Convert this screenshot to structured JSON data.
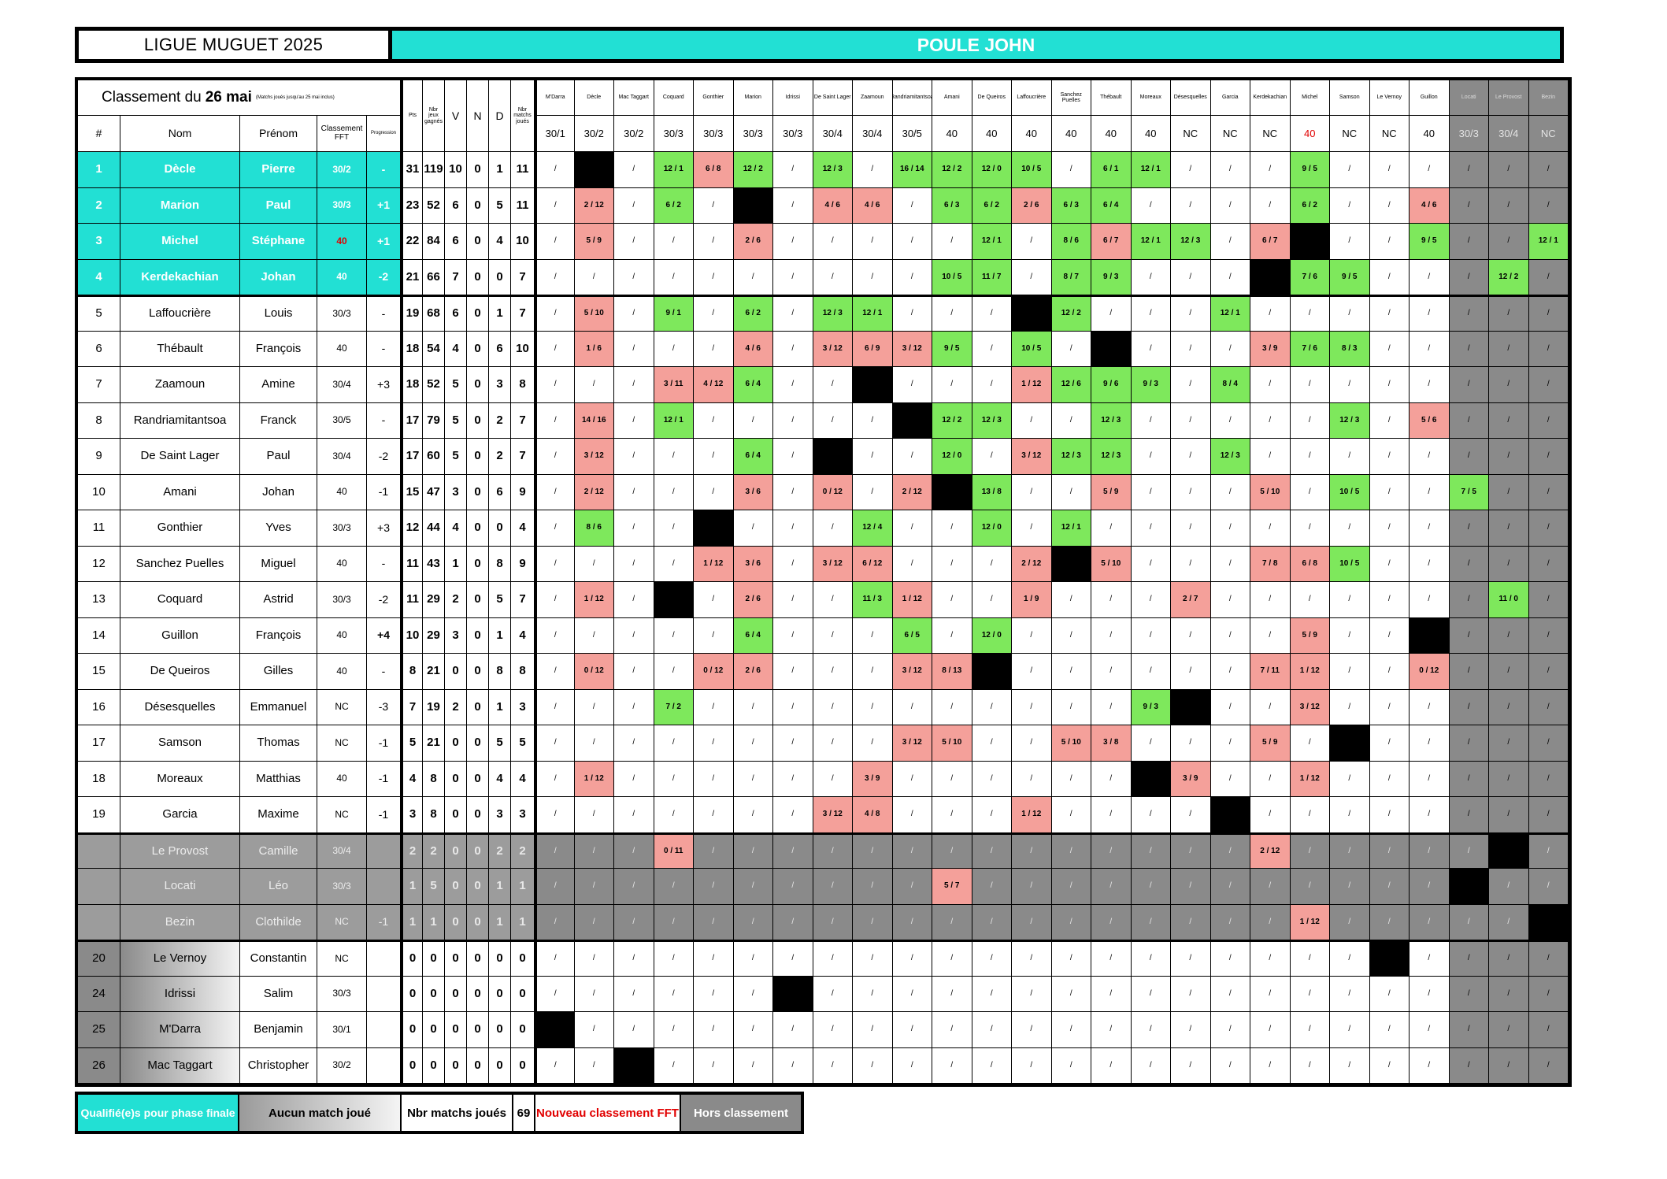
{
  "header": {
    "league": "LIGUE MUGUET 2025",
    "pool": "POULE JOHN"
  },
  "caption": {
    "prefix": "Classement du",
    "date": "26 mai",
    "note": "(Matchs joués jusqu'au 25 mai inclus)"
  },
  "columns": {
    "rank": "#",
    "nom": "Nom",
    "prenom": "Prénom",
    "classement": "Classement FFT",
    "progression": "Progression",
    "pts": "Pts",
    "jeux": "Nbr jeux gagnés",
    "v": "V",
    "n": "N",
    "d": "D",
    "matchs": "Nbr matchs joués"
  },
  "opponents": [
    {
      "name": "M'Darra",
      "rank": "30/1"
    },
    {
      "name": "Dècle",
      "rank": "30/2"
    },
    {
      "name": "Mac Taggart",
      "rank": "30/2"
    },
    {
      "name": "Coquard",
      "rank": "30/3"
    },
    {
      "name": "Gonthier",
      "rank": "30/3"
    },
    {
      "name": "Marion",
      "rank": "30/3"
    },
    {
      "name": "Idrissi",
      "rank": "30/3"
    },
    {
      "name": "De Saint Lager",
      "rank": "30/4"
    },
    {
      "name": "Zaamoun",
      "rank": "30/4"
    },
    {
      "name": "Randriamitantsoa",
      "rank": "30/5"
    },
    {
      "name": "Amani",
      "rank": "40"
    },
    {
      "name": "De Queiros",
      "rank": "40"
    },
    {
      "name": "Laffoucrière",
      "rank": "40"
    },
    {
      "name": "Sanchez Puelles",
      "rank": "40"
    },
    {
      "name": "Thébault",
      "rank": "40"
    },
    {
      "name": "Moreaux",
      "rank": "40"
    },
    {
      "name": "Désesquelles",
      "rank": "NC"
    },
    {
      "name": "Garcia",
      "rank": "NC"
    },
    {
      "name": "Kerdekachian",
      "rank": "NC"
    },
    {
      "name": "Michel",
      "rank": "40"
    },
    {
      "name": "Samson",
      "rank": "NC"
    },
    {
      "name": "Le Vernoy",
      "rank": "NC"
    },
    {
      "name": "Guillon",
      "rank": "40"
    },
    {
      "name": "Locati",
      "rank": "30/3"
    },
    {
      "name": "Le Provost",
      "rank": "30/4"
    },
    {
      "name": "Bezin",
      "rank": "NC"
    }
  ],
  "rows": [
    {
      "rank": "1",
      "nom": "Dècle",
      "prenom": "Pierre",
      "classement": "30/2",
      "progression": "-",
      "pts": "31",
      "jeux": "119",
      "v": "10",
      "n": "0",
      "d": "1",
      "matchs": "11",
      "results": [
        "/",
        "",
        "/",
        "12 / 1",
        "6 / 8",
        "12 / 2",
        "/",
        "12 / 3",
        "/",
        "16 / 14",
        "12 / 2",
        "12 / 0",
        "10 / 5",
        "/",
        "6 / 1",
        "12 / 1",
        "/",
        "/",
        "/",
        "9 / 5",
        "/",
        "/",
        "/",
        "/",
        "/",
        "/"
      ]
    },
    {
      "rank": "2",
      "nom": "Marion",
      "prenom": "Paul",
      "classement": "30/3",
      "progression": "+1",
      "pts": "23",
      "jeux": "52",
      "v": "6",
      "n": "0",
      "d": "5",
      "matchs": "11",
      "results": [
        "/",
        "2 / 12",
        "/",
        "6 / 2",
        "/",
        "",
        "/",
        "4 / 6",
        "4 / 6",
        "/",
        "6 / 3",
        "6 / 2",
        "2 / 6",
        "6 / 3",
        "6 / 4",
        "/",
        "/",
        "/",
        "/",
        "6 / 2",
        "/",
        "/",
        "4 / 6",
        "/",
        "/",
        "/"
      ]
    },
    {
      "rank": "3",
      "nom": "Michel",
      "prenom": "Stéphane",
      "classement": "40",
      "progression": "+1",
      "pts": "22",
      "jeux": "84",
      "v": "6",
      "n": "0",
      "d": "4",
      "matchs": "10",
      "results": [
        "/",
        "5 / 9",
        "/",
        "/",
        "/",
        "2 / 6",
        "/",
        "/",
        "/",
        "/",
        "/",
        "12 / 1",
        "/",
        "8 / 6",
        "6 / 7",
        "12 / 1",
        "12 / 3",
        "/",
        "6 / 7",
        "",
        "/",
        "/",
        "9 / 5",
        "/",
        "/",
        "12 / 1"
      ]
    },
    {
      "rank": "4",
      "nom": "Kerdekachian",
      "prenom": "Johan",
      "classement": "40",
      "progression": "-2",
      "pts": "21",
      "jeux": "66",
      "v": "7",
      "n": "0",
      "d": "0",
      "matchs": "7",
      "results": [
        "/",
        "/",
        "/",
        "/",
        "/",
        "/",
        "/",
        "/",
        "/",
        "/",
        "10 / 5",
        "11 / 7",
        "/",
        "8 / 7",
        "9 / 3",
        "/",
        "/",
        "/",
        "",
        "7 / 6",
        "9 / 5",
        "/",
        "/",
        "/",
        "12 / 2",
        "/"
      ]
    },
    {
      "rank": "5",
      "nom": "Laffoucrière",
      "prenom": "Louis",
      "classement": "30/3",
      "progression": "-",
      "pts": "19",
      "jeux": "68",
      "v": "6",
      "n": "0",
      "d": "1",
      "matchs": "7",
      "results": [
        "/",
        "5 / 10",
        "/",
        "9 / 1",
        "/",
        "6 / 2",
        "/",
        "12 / 3",
        "12 / 1",
        "/",
        "/",
        "/",
        "",
        "12 / 2",
        "/",
        "/",
        "/",
        "12 / 1",
        "/",
        "/",
        "/",
        "/",
        "/",
        "/",
        "/",
        "/"
      ]
    },
    {
      "rank": "6",
      "nom": "Thébault",
      "prenom": "François",
      "classement": "40",
      "progression": "-",
      "pts": "18",
      "jeux": "54",
      "v": "4",
      "n": "0",
      "d": "6",
      "matchs": "10",
      "results": [
        "/",
        "1 / 6",
        "/",
        "/",
        "/",
        "4 / 6",
        "/",
        "3 / 12",
        "6 / 9",
        "3 / 12",
        "9 / 5",
        "/",
        "10 / 5",
        "/",
        "",
        "/",
        "/",
        "/",
        "3 / 9",
        "7 / 6",
        "8 / 3",
        "/",
        "/",
        "/",
        "/",
        "/"
      ]
    },
    {
      "rank": "7",
      "nom": "Zaamoun",
      "prenom": "Amine",
      "classement": "30/4",
      "progression": "+3",
      "pts": "18",
      "jeux": "52",
      "v": "5",
      "n": "0",
      "d": "3",
      "matchs": "8",
      "results": [
        "/",
        "/",
        "/",
        "3 / 11",
        "4 / 12",
        "6 / 4",
        "/",
        "/",
        "",
        "/",
        "/",
        "/",
        "1 / 12",
        "12 / 6",
        "9 / 6",
        "9 / 3",
        "/",
        "8 / 4",
        "/",
        "/",
        "/",
        "/",
        "/",
        "/",
        "/",
        "/"
      ]
    },
    {
      "rank": "8",
      "nom": "Randriamitantsoa",
      "prenom": "Franck",
      "classement": "30/5",
      "progression": "-",
      "pts": "17",
      "jeux": "79",
      "v": "5",
      "n": "0",
      "d": "2",
      "matchs": "7",
      "results": [
        "/",
        "14 / 16",
        "/",
        "12 / 1",
        "/",
        "/",
        "/",
        "/",
        "/",
        "",
        "12 / 2",
        "12 / 3",
        "/",
        "/",
        "12 / 3",
        "/",
        "/",
        "/",
        "/",
        "/",
        "12 / 3",
        "/",
        "5 / 6",
        "/",
        "/",
        "/"
      ]
    },
    {
      "rank": "9",
      "nom": "De Saint Lager",
      "prenom": "Paul",
      "classement": "30/4",
      "progression": "-2",
      "pts": "17",
      "jeux": "60",
      "v": "5",
      "n": "0",
      "d": "2",
      "matchs": "7",
      "results": [
        "/",
        "3 / 12",
        "/",
        "/",
        "/",
        "6 / 4",
        "/",
        "",
        "/",
        "/",
        "12 / 0",
        "/",
        "3 / 12",
        "12 / 3",
        "12 / 3",
        "/",
        "/",
        "12 / 3",
        "/",
        "/",
        "/",
        "/",
        "/",
        "/",
        "/",
        "/"
      ]
    },
    {
      "rank": "10",
      "nom": "Amani",
      "prenom": "Johan",
      "classement": "40",
      "progression": "-1",
      "pts": "15",
      "jeux": "47",
      "v": "3",
      "n": "0",
      "d": "6",
      "matchs": "9",
      "results": [
        "/",
        "2 / 12",
        "/",
        "/",
        "/",
        "3 / 6",
        "/",
        "0 / 12",
        "/",
        "2 / 12",
        "",
        "13 / 8",
        "/",
        "/",
        "5 / 9",
        "/",
        "/",
        "/",
        "5 / 10",
        "/",
        "10 / 5",
        "/",
        "/",
        "7 / 5",
        "/",
        "/"
      ]
    },
    {
      "rank": "11",
      "nom": "Gonthier",
      "prenom": "Yves",
      "classement": "30/3",
      "progression": "+3",
      "pts": "12",
      "jeux": "44",
      "v": "4",
      "n": "0",
      "d": "0",
      "matchs": "4",
      "results": [
        "/",
        "8 / 6",
        "/",
        "/",
        "",
        "/",
        "/",
        "/",
        "12 / 4",
        "/",
        "/",
        "12 / 0",
        "/",
        "12 / 1",
        "/",
        "/",
        "/",
        "/",
        "/",
        "/",
        "/",
        "/",
        "/",
        "/",
        "/",
        "/"
      ]
    },
    {
      "rank": "12",
      "nom": "Sanchez Puelles",
      "prenom": "Miguel",
      "classement": "40",
      "progression": "-",
      "pts": "11",
      "jeux": "43",
      "v": "1",
      "n": "0",
      "d": "8",
      "matchs": "9",
      "results": [
        "/",
        "/",
        "/",
        "/",
        "1 / 12",
        "3 / 6",
        "/",
        "3 / 12",
        "6 / 12",
        "/",
        "/",
        "/",
        "2 / 12",
        "",
        "5 / 10",
        "/",
        "/",
        "/",
        "7 / 8",
        "6 / 8",
        "10 / 5",
        "/",
        "/",
        "/",
        "/",
        "/"
      ]
    },
    {
      "rank": "13",
      "nom": "Coquard",
      "prenom": "Astrid",
      "classement": "30/3",
      "progression": "-2",
      "pts": "11",
      "jeux": "29",
      "v": "2",
      "n": "0",
      "d": "5",
      "matchs": "7",
      "results": [
        "/",
        "1 / 12",
        "/",
        "",
        "/",
        "2 / 6",
        "/",
        "/",
        "11 / 3",
        "1 / 12",
        "/",
        "/",
        "1 / 9",
        "/",
        "/",
        "/",
        "2 / 7",
        "/",
        "/",
        "/",
        "/",
        "/",
        "/",
        "/",
        "11 / 0",
        "/"
      ]
    },
    {
      "rank": "14",
      "nom": "Guillon",
      "prenom": "François",
      "classement": "40",
      "progression": "+4",
      "pts": "10",
      "jeux": "29",
      "v": "3",
      "n": "0",
      "d": "1",
      "matchs": "4",
      "results": [
        "/",
        "/",
        "/",
        "/",
        "/",
        "6 / 4",
        "/",
        "/",
        "/",
        "6 / 5",
        "/",
        "12 / 0",
        "/",
        "/",
        "/",
        "/",
        "/",
        "/",
        "/",
        "5 / 9",
        "/",
        "/",
        "",
        "/",
        "/",
        "/"
      ]
    },
    {
      "rank": "15",
      "nom": "De Queiros",
      "prenom": "Gilles",
      "classement": "40",
      "progression": "-",
      "pts": "8",
      "jeux": "21",
      "v": "0",
      "n": "0",
      "d": "8",
      "matchs": "8",
      "results": [
        "/",
        "0 / 12",
        "/",
        "/",
        "0 / 12",
        "2 / 6",
        "/",
        "/",
        "/",
        "3 / 12",
        "8 / 13",
        "",
        "/",
        "/",
        "/",
        "/",
        "/",
        "/",
        "7 / 11",
        "1 / 12",
        "/",
        "/",
        "0 / 12",
        "/",
        "/",
        "/"
      ]
    },
    {
      "rank": "16",
      "nom": "Désesquelles",
      "prenom": "Emmanuel",
      "classement": "NC",
      "progression": "-3",
      "pts": "7",
      "jeux": "19",
      "v": "2",
      "n": "0",
      "d": "1",
      "matchs": "3",
      "results": [
        "/",
        "/",
        "/",
        "7 / 2",
        "/",
        "/",
        "/",
        "/",
        "/",
        "/",
        "/",
        "/",
        "/",
        "/",
        "/",
        "9 / 3",
        "",
        "/",
        "/",
        "3 / 12",
        "/",
        "/",
        "/",
        "/",
        "/",
        "/"
      ]
    },
    {
      "rank": "17",
      "nom": "Samson",
      "prenom": "Thomas",
      "classement": "NC",
      "progression": "-1",
      "pts": "5",
      "jeux": "21",
      "v": "0",
      "n": "0",
      "d": "5",
      "matchs": "5",
      "results": [
        "/",
        "/",
        "/",
        "/",
        "/",
        "/",
        "/",
        "/",
        "/",
        "3 / 12",
        "5 / 10",
        "/",
        "/",
        "5 / 10",
        "3 / 8",
        "/",
        "/",
        "/",
        "5 / 9",
        "/",
        "",
        "/",
        "/",
        "/",
        "/",
        "/"
      ]
    },
    {
      "rank": "18",
      "nom": "Moreaux",
      "prenom": "Matthias",
      "classement": "40",
      "progression": "-1",
      "pts": "4",
      "jeux": "8",
      "v": "0",
      "n": "0",
      "d": "4",
      "matchs": "4",
      "results": [
        "/",
        "1 / 12",
        "/",
        "/",
        "/",
        "/",
        "/",
        "/",
        "3 / 9",
        "/",
        "/",
        "/",
        "/",
        "/",
        "/",
        "",
        "3 / 9",
        "/",
        "/",
        "1 / 12",
        "/",
        "/",
        "/",
        "/",
        "/",
        "/"
      ]
    },
    {
      "rank": "19",
      "nom": "Garcia",
      "prenom": "Maxime",
      "classement": "NC",
      "progression": "-1",
      "pts": "3",
      "jeux": "8",
      "v": "0",
      "n": "0",
      "d": "3",
      "matchs": "3",
      "results": [
        "/",
        "/",
        "/",
        "/",
        "/",
        "/",
        "/",
        "3 / 12",
        "4 / 8",
        "/",
        "/",
        "/",
        "1 / 12",
        "/",
        "/",
        "/",
        "/",
        "",
        "/",
        "/",
        "/",
        "/",
        "/",
        "/",
        "/",
        "/"
      ]
    },
    {
      "rank": "",
      "nom": "Le Provost",
      "prenom": "Camille",
      "classement": "30/4",
      "progression": "",
      "pts": "2",
      "jeux": "2",
      "v": "0",
      "n": "0",
      "d": "2",
      "matchs": "2",
      "results": [
        "/",
        "/",
        "/",
        "0 / 11",
        "/",
        "/",
        "/",
        "/",
        "/",
        "/",
        "/",
        "/",
        "/",
        "/",
        "/",
        "/",
        "/",
        "/",
        "2 / 12",
        "/",
        "/",
        "/",
        "/",
        "/",
        "",
        "/"
      ]
    },
    {
      "rank": "",
      "nom": "Locati",
      "prenom": "Léo",
      "classement": "30/3",
      "progression": "",
      "pts": "1",
      "jeux": "5",
      "v": "0",
      "n": "0",
      "d": "1",
      "matchs": "1",
      "results": [
        "/",
        "/",
        "/",
        "/",
        "/",
        "/",
        "/",
        "/",
        "/",
        "/",
        "5 / 7",
        "/",
        "/",
        "/",
        "/",
        "/",
        "/",
        "/",
        "/",
        "/",
        "/",
        "/",
        "/",
        "",
        "/",
        "/"
      ]
    },
    {
      "rank": "",
      "nom": "Bezin",
      "prenom": "Clothilde",
      "classement": "NC",
      "progression": "-1",
      "pts": "1",
      "jeux": "1",
      "v": "0",
      "n": "0",
      "d": "1",
      "matchs": "1",
      "results": [
        "/",
        "/",
        "/",
        "/",
        "/",
        "/",
        "/",
        "/",
        "/",
        "/",
        "/",
        "/",
        "/",
        "/",
        "/",
        "/",
        "/",
        "/",
        "/",
        "1 / 12",
        "/",
        "/",
        "/",
        "/",
        "/",
        ""
      ]
    },
    {
      "rank": "20",
      "nom": "Le Vernoy",
      "prenom": "Constantin",
      "classement": "NC",
      "progression": "",
      "pts": "0",
      "jeux": "0",
      "v": "0",
      "n": "0",
      "d": "0",
      "matchs": "0",
      "results": [
        "/",
        "/",
        "/",
        "/",
        "/",
        "/",
        "/",
        "/",
        "/",
        "/",
        "/",
        "/",
        "/",
        "/",
        "/",
        "/",
        "/",
        "/",
        "/",
        "/",
        "/",
        "",
        "/",
        "/",
        "/",
        "/"
      ]
    },
    {
      "rank": "24",
      "nom": "Idrissi",
      "prenom": "Salim",
      "classement": "30/3",
      "progression": "",
      "pts": "0",
      "jeux": "0",
      "v": "0",
      "n": "0",
      "d": "0",
      "matchs": "0",
      "results": [
        "/",
        "/",
        "/",
        "/",
        "/",
        "/",
        "",
        "/",
        "/",
        "/",
        "/",
        "/",
        "/",
        "/",
        "/",
        "/",
        "/",
        "/",
        "/",
        "/",
        "/",
        "/",
        "/",
        "/",
        "/",
        "/"
      ]
    },
    {
      "rank": "25",
      "nom": "M'Darra",
      "prenom": "Benjamin",
      "classement": "30/1",
      "progression": "",
      "pts": "0",
      "jeux": "0",
      "v": "0",
      "n": "0",
      "d": "0",
      "matchs": "0",
      "results": [
        "",
        "/",
        "/",
        "/",
        "/",
        "/",
        "/",
        "/",
        "/",
        "/",
        "/",
        "/",
        "/",
        "/",
        "/",
        "/",
        "/",
        "/",
        "/",
        "/",
        "/",
        "/",
        "/",
        "/",
        "/",
        "/"
      ]
    },
    {
      "rank": "26",
      "nom": "Mac Taggart",
      "prenom": "Christopher",
      "classement": "30/2",
      "progression": "",
      "pts": "0",
      "jeux": "0",
      "v": "0",
      "n": "0",
      "d": "0",
      "matchs": "0",
      "results": [
        "/",
        "/",
        "",
        "/",
        "/",
        "/",
        "/",
        "/",
        "/",
        "/",
        "/",
        "/",
        "/",
        "/",
        "/",
        "/",
        "/",
        "/",
        "/",
        "/",
        "/",
        "/",
        "/",
        "/",
        "/",
        "/"
      ]
    }
  ],
  "legend": {
    "qualified": "Qualifié(e)s pour phase finale",
    "no_match": "Aucun match joué",
    "matches_label": "Nbr matchs joués",
    "matches_value": "69",
    "new_ranking": "Nouveau classement FFT",
    "unranked": "Hors classement"
  },
  "colors": {
    "qualified": "#22e0d4",
    "win": "#7ee85c",
    "loss": "#f4a09a",
    "unranked": "#9c9c9c",
    "new_ranking": "#e10000"
  }
}
